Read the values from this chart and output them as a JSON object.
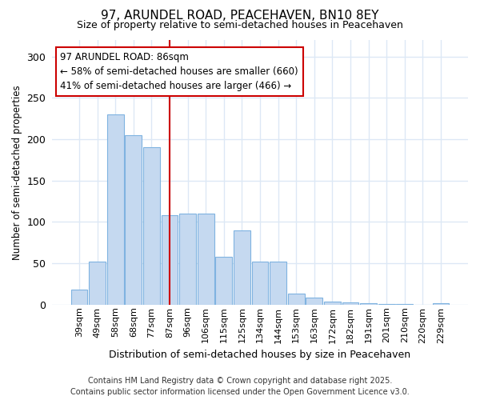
{
  "title": "97, ARUNDEL ROAD, PEACEHAVEN, BN10 8EY",
  "subtitle": "Size of property relative to semi-detached houses in Peacehaven",
  "xlabel": "Distribution of semi-detached houses by size in Peacehaven",
  "ylabel": "Number of semi-detached properties",
  "categories": [
    "39sqm",
    "49sqm",
    "58sqm",
    "68sqm",
    "77sqm",
    "87sqm",
    "96sqm",
    "106sqm",
    "115sqm",
    "125sqm",
    "134sqm",
    "144sqm",
    "153sqm",
    "163sqm",
    "172sqm",
    "182sqm",
    "191sqm",
    "201sqm",
    "210sqm",
    "220sqm",
    "229sqm"
  ],
  "values": [
    18,
    52,
    230,
    205,
    190,
    108,
    110,
    110,
    58,
    90,
    52,
    52,
    13,
    8,
    4,
    3,
    2,
    1,
    1,
    0,
    2
  ],
  "bar_color": "#c5d9f0",
  "bar_edge_color": "#7fb3e0",
  "vline_x": 5,
  "vline_color": "#cc0000",
  "annotation_text": "97 ARUNDEL ROAD: 86sqm\n← 58% of semi-detached houses are smaller (660)\n41% of semi-detached houses are larger (466) →",
  "annotation_box_facecolor": "#ffffff",
  "annotation_box_edgecolor": "#cc0000",
  "ylim": [
    0,
    320
  ],
  "yticks": [
    0,
    50,
    100,
    150,
    200,
    250,
    300
  ],
  "footer_line1": "Contains HM Land Registry data © Crown copyright and database right 2025.",
  "footer_line2": "Contains public sector information licensed under the Open Government Licence v3.0.",
  "bg_color": "#ffffff",
  "grid_color": "#dde8f5"
}
